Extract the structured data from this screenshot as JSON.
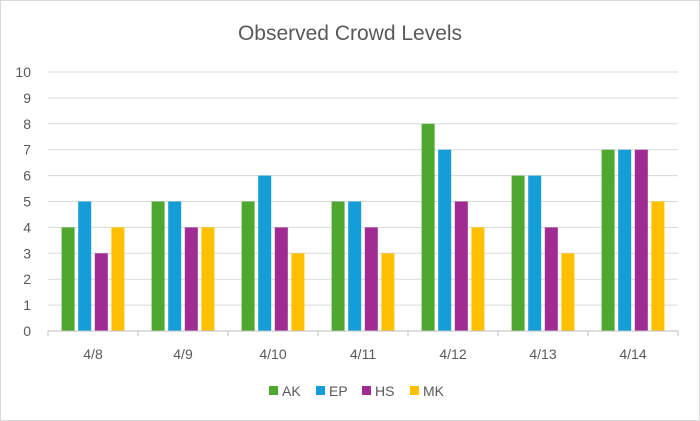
{
  "chart_data": {
    "type": "bar",
    "title": "Observed Crowd Levels",
    "xlabel": "",
    "ylabel": "",
    "ylim": [
      0,
      10
    ],
    "yticks": [
      "0",
      "1",
      "2",
      "3",
      "4",
      "5",
      "6",
      "7",
      "8",
      "9",
      "10"
    ],
    "grid": true,
    "legend_position": "bottom",
    "categories": [
      "4/8",
      "4/9",
      "4/10",
      "4/11",
      "4/12",
      "4/13",
      "4/14"
    ],
    "series": [
      {
        "name": "AK",
        "color": "#4ea72e",
        "values": [
          4,
          5,
          5,
          5,
          8,
          6,
          7
        ]
      },
      {
        "name": "EP",
        "color": "#149dd7",
        "values": [
          5,
          5,
          6,
          5,
          7,
          6,
          7
        ]
      },
      {
        "name": "HS",
        "color": "#a02b93",
        "values": [
          3,
          4,
          4,
          4,
          5,
          4,
          7
        ]
      },
      {
        "name": "MK",
        "color": "#ffc000",
        "values": [
          4,
          4,
          3,
          3,
          4,
          3,
          5
        ]
      }
    ]
  }
}
